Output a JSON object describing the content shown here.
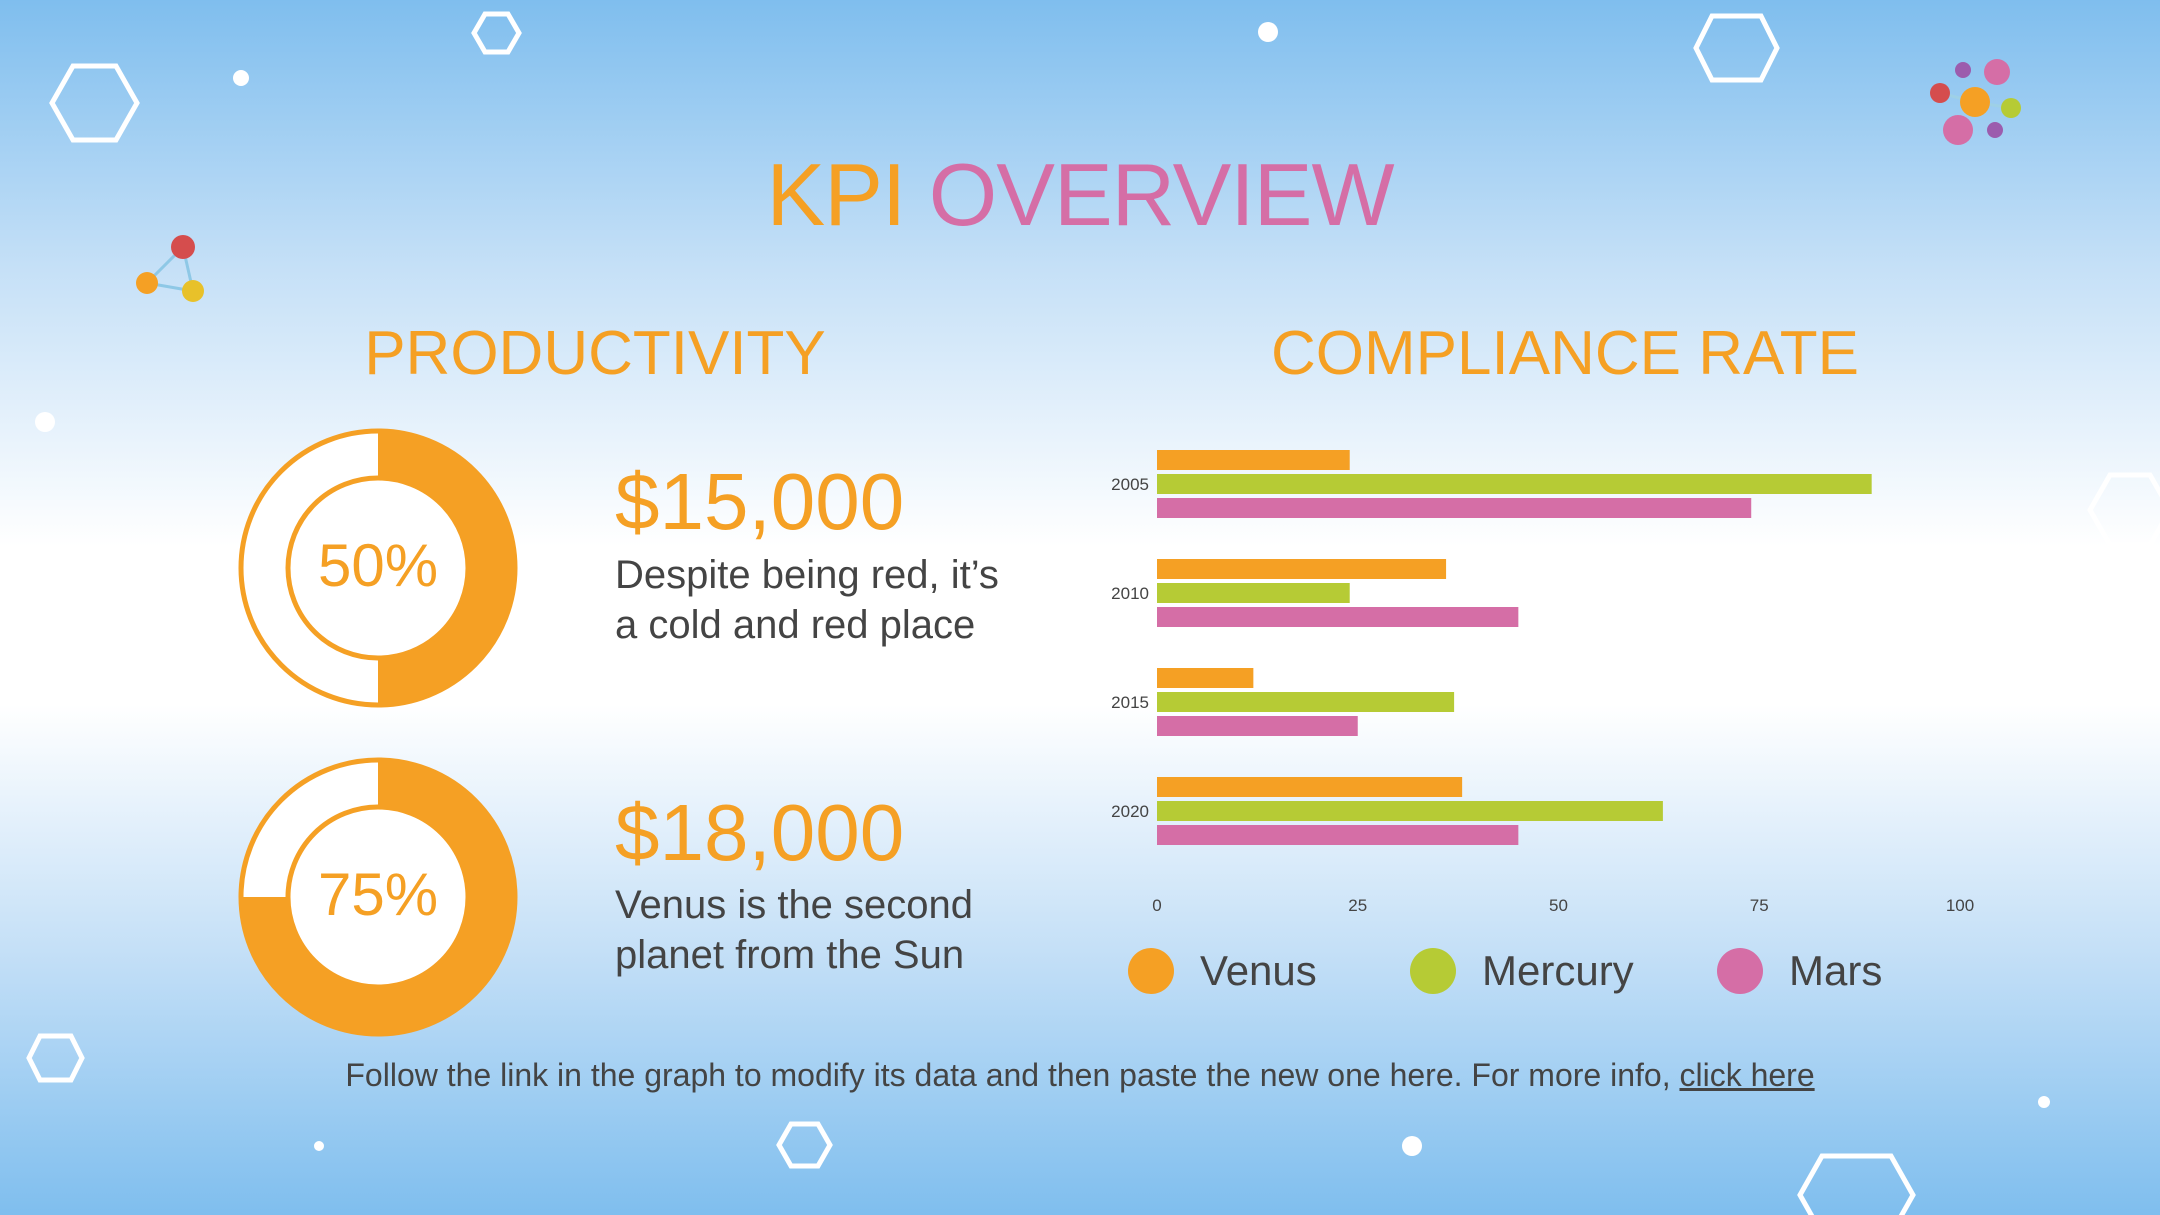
{
  "title": {
    "part1": "KPI",
    "part2": "OVERVIEW",
    "color1": "#f5a024",
    "color2": "#d56ea6"
  },
  "productivity": {
    "heading": "PRODUCTIVITY",
    "kpis": [
      {
        "percent": "50%",
        "fraction": 0.5,
        "amount": "$15,000",
        "description": "Despite being red, it’s a cold and red place"
      },
      {
        "percent": "75%",
        "fraction": 0.75,
        "amount": "$18,000",
        "description": "Venus is the second planet from the Sun"
      }
    ]
  },
  "compliance": {
    "heading": "COMPLIANCE RATE"
  },
  "chart_data": {
    "type": "bar",
    "orientation": "horizontal",
    "categories": [
      "2005",
      "2010",
      "2015",
      "2020"
    ],
    "series": [
      {
        "name": "Venus",
        "color": "#f5a024",
        "values": [
          24,
          36,
          12,
          38
        ]
      },
      {
        "name": "Mercury",
        "color": "#b6cb35",
        "values": [
          89,
          24,
          37,
          63
        ]
      },
      {
        "name": "Mars",
        "color": "#d56ea6",
        "values": [
          74,
          45,
          25,
          45
        ]
      }
    ],
    "xlim": [
      0,
      100
    ],
    "xticks": [
      "0",
      "25",
      "50",
      "75",
      "100"
    ],
    "grid": false,
    "legend": "bottom"
  },
  "footer": {
    "text": "Follow the link in the graph to modify its data and then paste the new one here. For more info,",
    "link": "click here"
  },
  "colors": {
    "orange": "#f5a024",
    "green": "#b6cb35",
    "pink": "#d56ea6",
    "red": "#d54d4d",
    "purple": "#9c5cad",
    "text": "#444444"
  }
}
